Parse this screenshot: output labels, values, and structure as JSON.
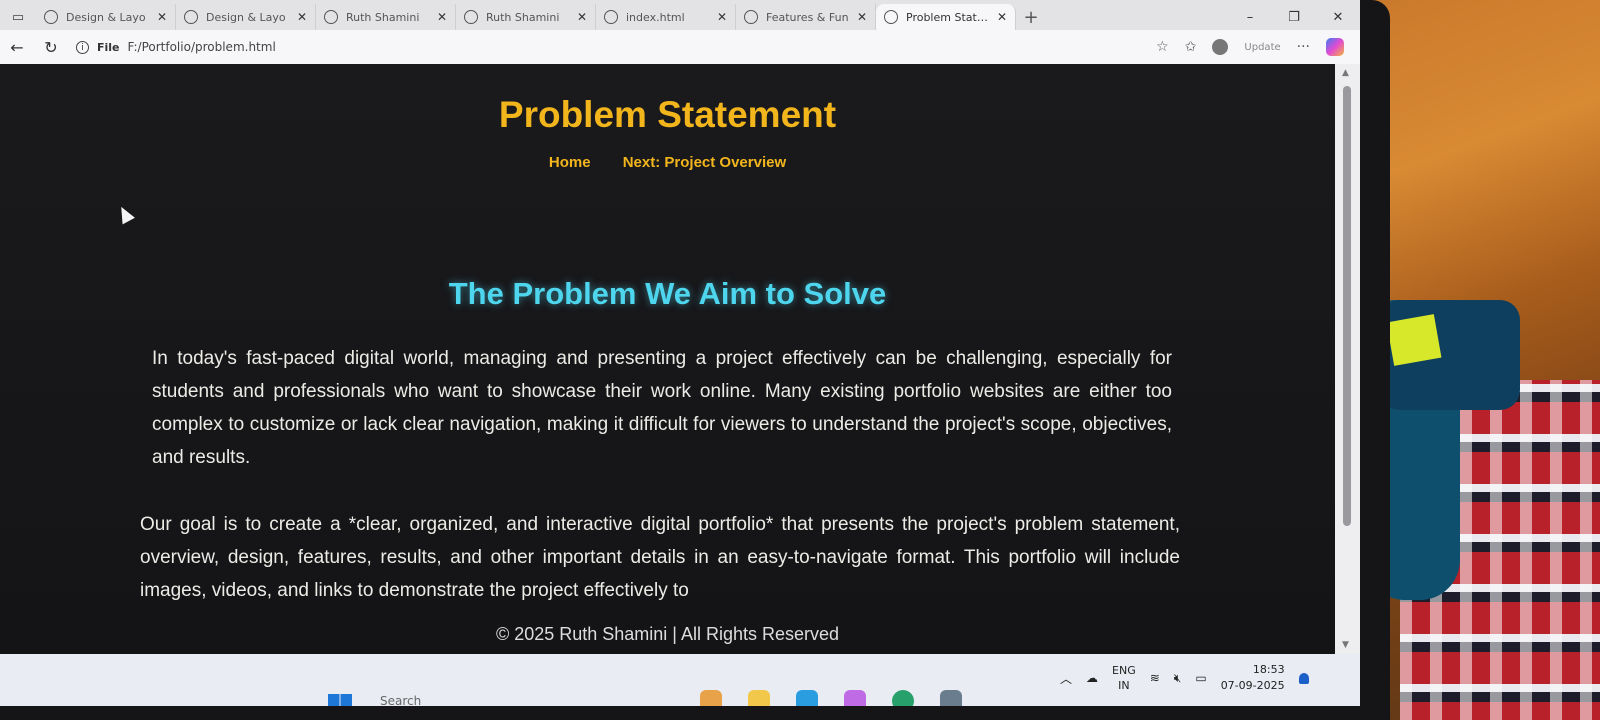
{
  "browser": {
    "tabs": [
      {
        "title": "Design & Layo"
      },
      {
        "title": "Design & Layo"
      },
      {
        "title": "Ruth Shamini"
      },
      {
        "title": "Ruth Shamini"
      },
      {
        "title": "index.html"
      },
      {
        "title": "Features & Fun"
      },
      {
        "title": "Problem Statem",
        "active": true
      }
    ],
    "new_tab_glyph": "+",
    "window_controls": {
      "minimize": "–",
      "restore": "❐",
      "close": "✕"
    },
    "address": {
      "scheme_label": "File",
      "url": "F:/Portfolio/problem.html"
    },
    "update_label": "Update",
    "more_label": "···"
  },
  "page": {
    "title": "Problem Statement",
    "nav": {
      "home": "Home",
      "next": "Next: Project Overview"
    },
    "section_heading": "The Problem We Aim to Solve",
    "paragraphs": [
      "In today's fast-paced digital world, managing and presenting a project effectively can be challenging, especially for students and professionals who want to showcase their work online. Many existing portfolio websites are either too complex to customize or lack clear navigation, making it difficult for viewers to understand the project's scope, objectives, and results.",
      "Our goal is to create a *clear, organized, and interactive digital portfolio* that presents the project's problem statement, overview, design, features, results, and other important details in an easy-to-navigate format. This portfolio will include images, videos, and links to demonstrate the project effectively to"
    ],
    "footer": "© 2025 Ruth Shamini | All Rights Reserved"
  },
  "taskbar": {
    "search_placeholder": "Search",
    "language": {
      "line1": "ENG",
      "line2": "IN"
    },
    "time": "18:53",
    "date": "07-09-2025",
    "notification_badge": "1"
  },
  "colors": {
    "title_accent": "#f2b51c",
    "heading_accent": "#4ed6ee",
    "page_background": "#1a1a1d"
  }
}
